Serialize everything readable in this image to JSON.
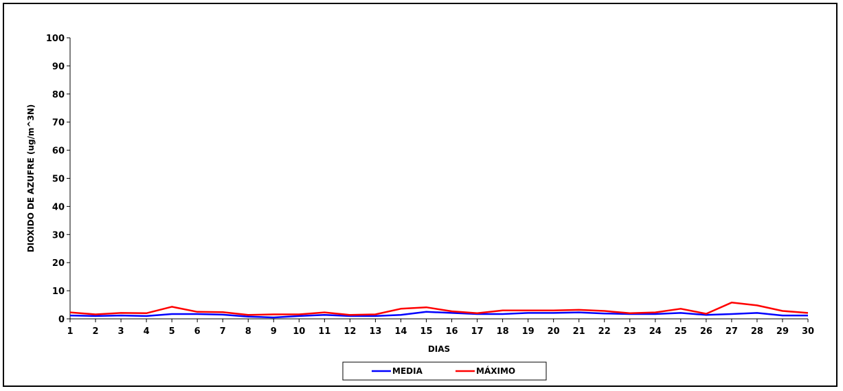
{
  "chart_data": {
    "type": "line",
    "title": "",
    "xlabel": "DIAS",
    "ylabel": "DIOXIDO DE AZUFRE (ug/m^3N)",
    "x": [
      1,
      2,
      3,
      4,
      5,
      6,
      7,
      8,
      9,
      10,
      11,
      12,
      13,
      14,
      15,
      16,
      17,
      18,
      19,
      20,
      21,
      22,
      23,
      24,
      25,
      26,
      27,
      28,
      29,
      30
    ],
    "ylim": [
      0,
      100
    ],
    "yticks": [
      0,
      10,
      20,
      30,
      40,
      50,
      60,
      70,
      80,
      90,
      100
    ],
    "grid": false,
    "legend_position": "bottom-center",
    "series": [
      {
        "name": "MEDIA",
        "color": "#0000ff",
        "values": [
          1.2,
          1.0,
          1.2,
          1.0,
          1.7,
          1.7,
          1.5,
          0.8,
          0.5,
          1.0,
          1.4,
          1.0,
          1.0,
          1.4,
          2.5,
          2.1,
          1.7,
          1.7,
          2.1,
          2.1,
          2.3,
          1.9,
          1.7,
          1.7,
          2.1,
          1.4,
          1.7,
          2.1,
          1.2,
          1.2
        ]
      },
      {
        "name": "MÁXIMO",
        "color": "#ff0000",
        "values": [
          2.3,
          1.6,
          2.1,
          2.0,
          4.3,
          2.5,
          2.4,
          1.4,
          1.6,
          1.6,
          2.3,
          1.4,
          1.6,
          3.6,
          4.1,
          2.7,
          2.0,
          3.0,
          3.0,
          3.0,
          3.2,
          2.8,
          2.0,
          2.3,
          3.6,
          1.8,
          5.8,
          4.8,
          2.8,
          2.1
        ]
      }
    ]
  }
}
